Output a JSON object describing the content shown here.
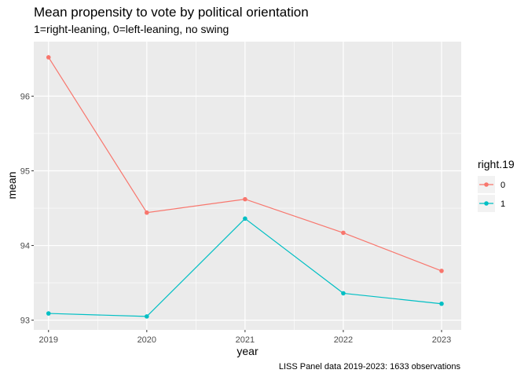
{
  "chart_data": {
    "type": "line",
    "title": "Mean propensity to vote by political orientation",
    "subtitle": "1=right-leaning, 0=left-leaning, no swing",
    "xlabel": "year",
    "ylabel": "mean",
    "caption": "LISS Panel data 2019-2023: 1633 observations",
    "x": [
      2019,
      2020,
      2021,
      2022,
      2023
    ],
    "x_tick_labels": [
      "2019",
      "2020",
      "2021",
      "2022",
      "2023"
    ],
    "y_ticks": [
      93,
      94,
      95,
      96
    ],
    "y_tick_labels": [
      "93",
      "94",
      "95",
      "96"
    ],
    "xlim": [
      2018.85,
      2023.2
    ],
    "ylim": [
      92.87,
      96.73
    ],
    "legend": {
      "title": "right.19",
      "position": "right"
    },
    "series": [
      {
        "name": "0",
        "color": "#F8766D",
        "values": [
          96.52,
          94.44,
          94.62,
          94.17,
          93.66
        ]
      },
      {
        "name": "1",
        "color": "#00BFC4",
        "values": [
          93.09,
          93.05,
          94.36,
          93.36,
          93.22
        ]
      }
    ],
    "grid": true,
    "panel_background": "#EBEBEB"
  }
}
